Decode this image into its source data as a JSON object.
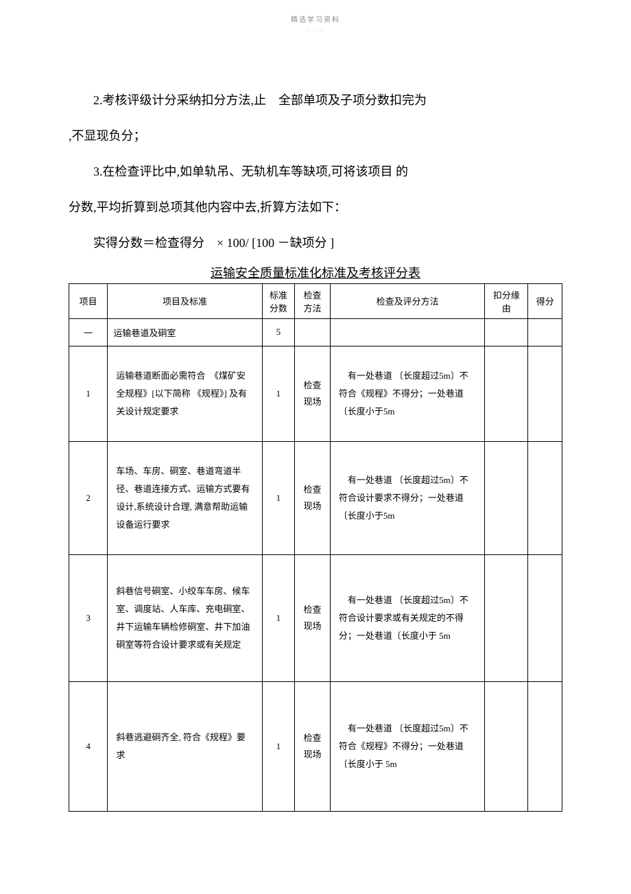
{
  "header": {
    "small_text": "精选学习资料",
    "dots": "- - -"
  },
  "paragraphs": {
    "p2_line1": "2.考核评级计分采纳扣分方法,止　全部单项及子项分数扣完为",
    "p2_line2": ",不显现负分；",
    "p3_line1": "3.在检查评比中,如单轨吊、无轨机车等缺项,可将该项目 的",
    "p3_line2": "分数,平均折算到总项其他内容中去,折算方法如下：",
    "formula": "实得分数＝检查得分　× 100/ [100 －缺项分 ]"
  },
  "table": {
    "title": "运输安全质量标准化标准及考核评分表",
    "headers": {
      "col1": "项目",
      "col2": "项目及标准",
      "col3": "标准分数",
      "col4": "检查方法",
      "col5": "检查及评分方法",
      "col6": "扣分缘由",
      "col7": "得分"
    },
    "rows": [
      {
        "num": "一",
        "item": "运输巷道及硐室",
        "score": "5",
        "method": "",
        "eval": "",
        "reason": "",
        "got": ""
      },
      {
        "num": "1",
        "item": "运输巷道断面必需符合　《煤矿安全规程》[以下简称 《规程》] 及有关设计规定要求",
        "score": "1",
        "method": "检查现场",
        "eval": "有一处巷道 〔长度超过5m〕不符合《规程》不得分；一处巷道　〔长度小于5m",
        "reason": "",
        "got": ""
      },
      {
        "num": "2",
        "item": "车场、车房、硐室、巷道弯道半径、巷道连接方式、运输方式要有设计,系统设计合理, 满意帮助运输设备运行要求",
        "score": "1",
        "method": "检查现场",
        "eval": "有一处巷道 〔长度超过5m〕不符合设计要求不得分；一处巷道　〔长度小于5m",
        "reason": "",
        "got": ""
      },
      {
        "num": "3",
        "item": "斜巷信号硐室、小绞车车房、候车室、调度站、人车库、充电硐室、 井下运输车辆检修硐室、井下加油硐室等符合设计要求或有关规定",
        "score": "1",
        "method": "检查现场",
        "eval": "有一处巷道 〔长度超过5m〕不符合设计要求或有关规定的不得分；一处巷道〔长度小于 5m",
        "reason": "",
        "got": ""
      },
      {
        "num": "4",
        "item": "斜巷逃避硐齐全, 符合《规程》要求",
        "score": "1",
        "method": "检查现场",
        "eval": "有一处巷道 〔长度超过5m〕不符合《规程》不得分；一处巷道　〔长度小于 5m",
        "reason": "",
        "got": ""
      }
    ]
  }
}
